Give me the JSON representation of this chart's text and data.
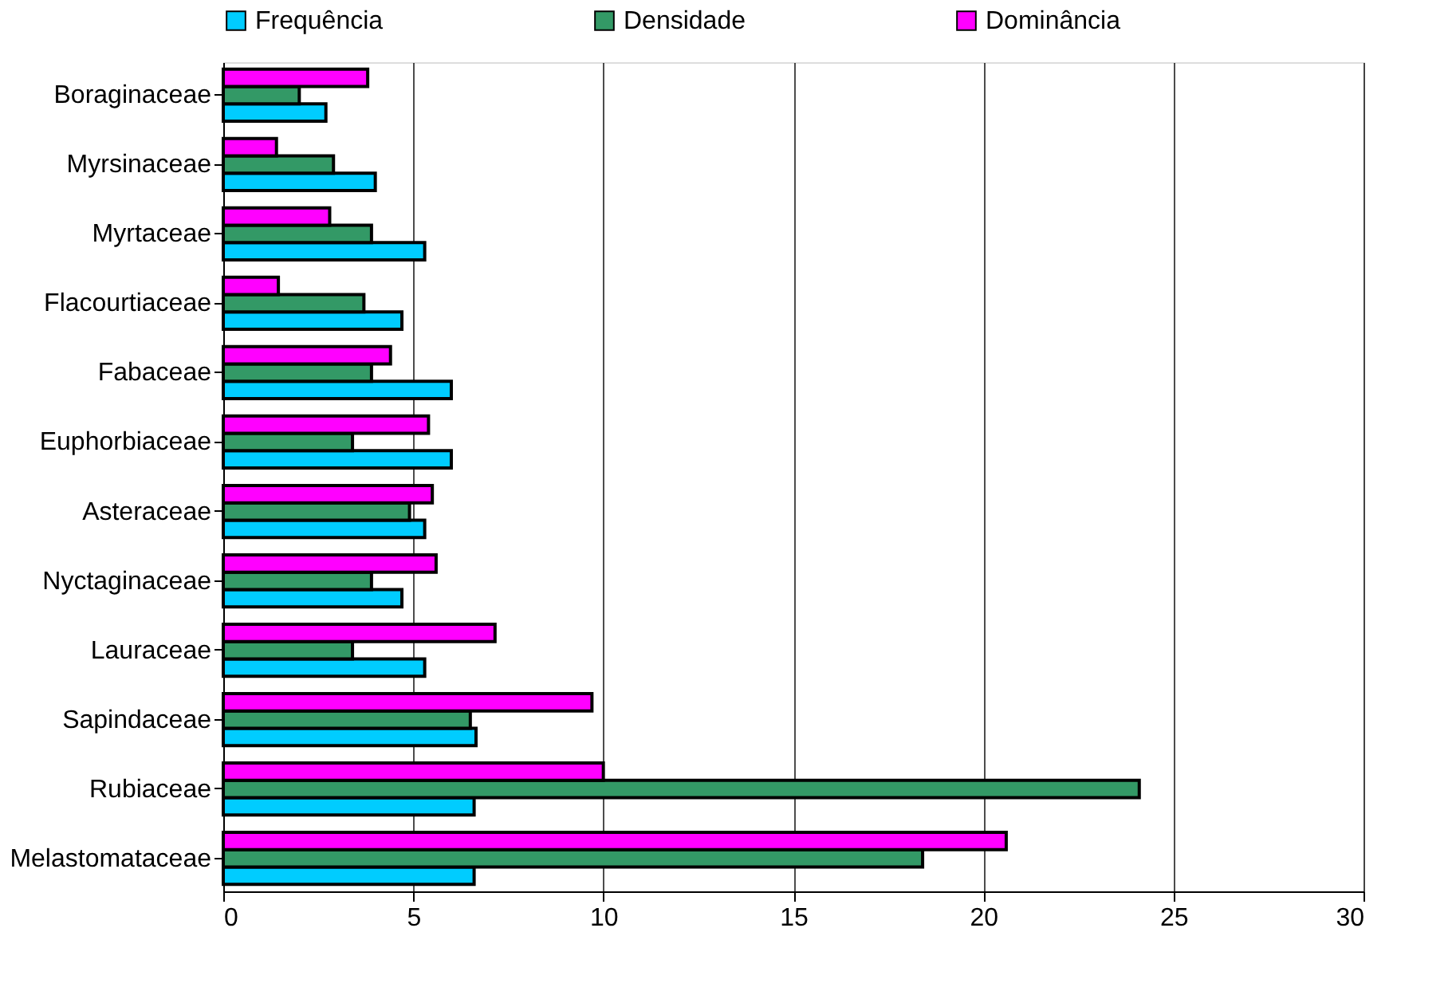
{
  "chart_data": {
    "type": "bar",
    "orientation": "horizontal",
    "categories": [
      "Boraginaceae",
      "Myrsinaceae",
      "Myrtaceae",
      "Flacourtiaceae",
      "Fabaceae",
      "Euphorbiaceae",
      "Asteraceae",
      "Nyctaginaceae",
      "Lauraceae",
      "Sapindaceae",
      "Rubiaceae",
      "Melastomataceae"
    ],
    "series": [
      {
        "name": "Frequência",
        "color": "#00ccff",
        "values": [
          2.7,
          4.0,
          5.3,
          4.7,
          6.0,
          6.0,
          5.3,
          4.7,
          5.3,
          6.65,
          6.6,
          6.6
        ]
      },
      {
        "name": "Densidade",
        "color": "#339966",
        "values": [
          2.0,
          2.9,
          3.9,
          3.7,
          3.9,
          3.4,
          4.9,
          3.9,
          3.4,
          6.5,
          24.1,
          18.4
        ]
      },
      {
        "name": "Dominância",
        "color": "#ff00ff",
        "values": [
          3.8,
          1.4,
          2.8,
          1.45,
          4.4,
          5.4,
          5.5,
          5.6,
          7.15,
          9.7,
          10.0,
          20.6
        ]
      }
    ],
    "xlim": [
      0,
      30
    ],
    "xticks": [
      0,
      5,
      10,
      15,
      20,
      25,
      30
    ],
    "grid": "x",
    "legend": "top"
  }
}
